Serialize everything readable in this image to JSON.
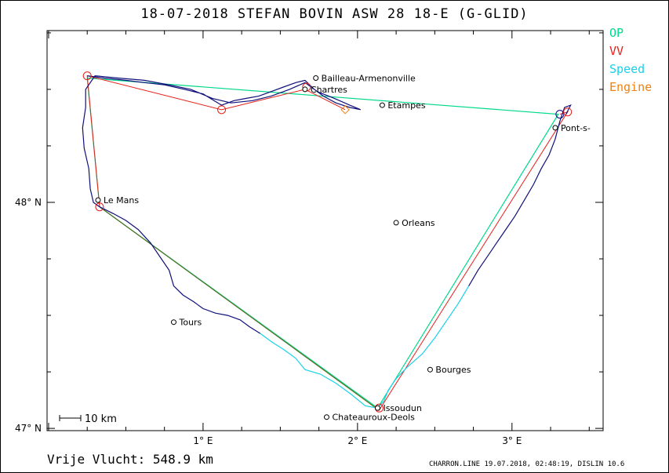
{
  "title": "18-07-2018    STEFAN BOVIN    ASW 28 18-E (G-GLID)",
  "legend": [
    {
      "label": "OP",
      "color": "#00d98a"
    },
    {
      "label": "VV",
      "color": "#e8201a"
    },
    {
      "label": "Speed",
      "color": "#1ad1e8"
    },
    {
      "label": "Engine",
      "color": "#f08010"
    }
  ],
  "axes": {
    "x_ticks": [
      {
        "value": 1,
        "label": "1° E"
      },
      {
        "value": 2,
        "label": "2° E"
      },
      {
        "value": 3,
        "label": "3° E"
      }
    ],
    "y_ticks": [
      {
        "value": 48,
        "label": "48° N"
      },
      {
        "value": 47,
        "label": "47° N"
      }
    ],
    "lon_range": [
      -0.01,
      3.59
    ],
    "lat_range": [
      46.99,
      48.76
    ]
  },
  "scale_bar": "10  km",
  "cities": [
    {
      "name": "Bailleau-Armenonville",
      "lon": 1.73,
      "lat": 48.55
    },
    {
      "name": "Chartres",
      "lon": 1.66,
      "lat": 48.5
    },
    {
      "name": "Etampes",
      "lon": 2.16,
      "lat": 48.43
    },
    {
      "name": "Pont-s-",
      "lon": 3.28,
      "lat": 48.33
    },
    {
      "name": "Le Mans",
      "lon": 0.32,
      "lat": 48.01
    },
    {
      "name": "Orleans",
      "lon": 2.25,
      "lat": 47.91
    },
    {
      "name": "Tours",
      "lon": 0.81,
      "lat": 47.47
    },
    {
      "name": "Bourges",
      "lon": 2.47,
      "lat": 47.26
    },
    {
      "name": "Issoudun",
      "lon": 2.13,
      "lat": 47.09
    },
    {
      "name": "Chateauroux-Deols",
      "lon": 1.8,
      "lat": 47.05
    }
  ],
  "routes": {
    "op": [
      [
        0.25,
        48.55
      ],
      [
        3.3,
        48.39
      ],
      [
        2.13,
        47.09
      ],
      [
        0.33,
        47.98
      ]
    ],
    "vv": [
      [
        0.25,
        48.56
      ],
      [
        1.12,
        48.41
      ],
      [
        1.66,
        48.5
      ],
      [
        1.92,
        48.41
      ],
      [
        1.66,
        48.5
      ],
      [
        1.12,
        48.41
      ],
      [
        0.25,
        48.56
      ],
      [
        0.33,
        47.98
      ],
      [
        2.14,
        47.08
      ],
      [
        3.36,
        48.4
      ],
      [
        3.31,
        48.39
      ]
    ],
    "engine": [
      [
        0.33,
        47.98
      ],
      [
        2.12,
        47.09
      ]
    ]
  },
  "turnpoints": [
    {
      "lon": 0.25,
      "lat": 48.56,
      "color": "#e8201a"
    },
    {
      "lon": 1.12,
      "lat": 48.41,
      "color": "#e8201a"
    },
    {
      "lon": 1.67,
      "lat": 48.51,
      "color": "#e8201a"
    },
    {
      "lon": 1.92,
      "lat": 48.41,
      "color": "#f08010",
      "shape": "diamond"
    },
    {
      "lon": 3.31,
      "lat": 48.39,
      "color": "#000080"
    },
    {
      "lon": 0.33,
      "lat": 47.98,
      "color": "#e8201a"
    },
    {
      "lon": 2.14,
      "lat": 47.09,
      "color": "#e8201a"
    },
    {
      "lon": 3.36,
      "lat": 48.4,
      "color": "#e8201a"
    }
  ],
  "track_navy": [
    [
      0.25,
      48.56
    ],
    [
      0.36,
      48.55
    ],
    [
      0.5,
      48.54
    ],
    [
      0.62,
      48.53
    ],
    [
      0.75,
      48.52
    ],
    [
      0.88,
      48.5
    ],
    [
      1.0,
      48.48
    ],
    [
      1.12,
      48.43
    ],
    [
      1.2,
      48.45
    ],
    [
      1.28,
      48.46
    ],
    [
      1.36,
      48.47
    ],
    [
      1.44,
      48.49
    ],
    [
      1.52,
      48.51
    ],
    [
      1.6,
      48.53
    ],
    [
      1.66,
      48.54
    ],
    [
      1.72,
      48.5
    ],
    [
      1.78,
      48.47
    ],
    [
      1.86,
      48.44
    ],
    [
      1.95,
      48.42
    ],
    [
      2.02,
      48.41
    ],
    [
      1.95,
      48.43
    ],
    [
      1.85,
      48.46
    ],
    [
      1.74,
      48.49
    ],
    [
      1.66,
      48.53
    ],
    [
      1.56,
      48.5
    ],
    [
      1.44,
      48.47
    ],
    [
      1.32,
      48.45
    ],
    [
      1.18,
      48.44
    ],
    [
      1.06,
      48.46
    ],
    [
      0.92,
      48.5
    ],
    [
      0.78,
      48.52
    ],
    [
      0.62,
      48.54
    ],
    [
      0.45,
      48.55
    ],
    [
      0.3,
      48.56
    ],
    [
      0.24,
      48.5
    ],
    [
      0.24,
      48.42
    ],
    [
      0.22,
      48.33
    ],
    [
      0.23,
      48.24
    ],
    [
      0.26,
      48.15
    ],
    [
      0.27,
      48.06
    ],
    [
      0.29,
      48.0
    ],
    [
      0.33,
      47.98
    ],
    [
      0.42,
      47.95
    ],
    [
      0.5,
      47.92
    ],
    [
      0.58,
      47.88
    ],
    [
      0.66,
      47.82
    ],
    [
      0.72,
      47.76
    ],
    [
      0.78,
      47.7
    ],
    [
      0.81,
      47.63
    ],
    [
      0.87,
      47.59
    ],
    [
      0.94,
      47.56
    ],
    [
      1.0,
      47.53
    ],
    [
      1.08,
      47.51
    ],
    [
      1.16,
      47.5
    ],
    [
      1.24,
      47.48
    ],
    [
      1.3,
      47.45
    ],
    [
      1.37,
      47.42
    ]
  ],
  "track_cyan": [
    [
      1.37,
      47.42
    ],
    [
      1.45,
      47.38
    ],
    [
      1.52,
      47.35
    ],
    [
      1.6,
      47.31
    ],
    [
      1.66,
      47.26
    ],
    [
      1.76,
      47.24
    ],
    [
      1.86,
      47.2
    ],
    [
      1.96,
      47.15
    ],
    [
      2.05,
      47.1
    ],
    [
      2.13,
      47.09
    ],
    [
      2.17,
      47.12
    ],
    [
      2.2,
      47.17
    ],
    [
      2.25,
      47.22
    ],
    [
      2.32,
      47.27
    ],
    [
      2.42,
      47.33
    ],
    [
      2.5,
      47.4
    ],
    [
      2.58,
      47.48
    ],
    [
      2.65,
      47.55
    ],
    [
      2.72,
      47.63
    ]
  ],
  "track_navy_2": [
    [
      2.72,
      47.63
    ],
    [
      2.78,
      47.7
    ],
    [
      2.85,
      47.77
    ],
    [
      2.9,
      47.82
    ],
    [
      2.96,
      47.88
    ],
    [
      3.02,
      47.94
    ],
    [
      3.08,
      48.01
    ],
    [
      3.14,
      48.08
    ],
    [
      3.19,
      48.15
    ],
    [
      3.24,
      48.21
    ],
    [
      3.28,
      48.28
    ],
    [
      3.31,
      48.36
    ],
    [
      3.34,
      48.42
    ],
    [
      3.38,
      48.43
    ],
    [
      3.35,
      48.39
    ]
  ],
  "info": {
    "distance": "Vrije Vlucht:  548.9 km",
    "program": "CHARRON.LINE 19.07.2018, 02:48:19, DISLIN 10.6"
  }
}
